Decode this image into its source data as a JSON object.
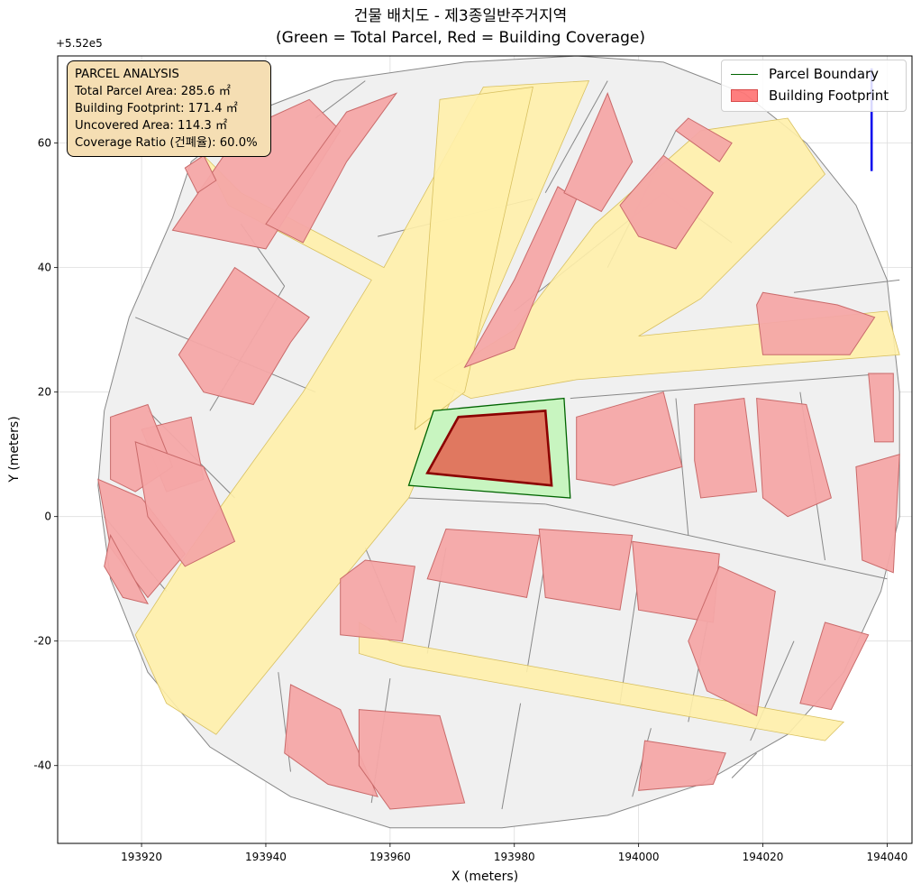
{
  "title": {
    "line1": "건물 배치도 - 제3종일반주거지역",
    "line2": "(Green = Total Parcel, Red = Building Coverage)"
  },
  "info_box": {
    "heading": "PARCEL ANALYSIS",
    "total_area": "Total Parcel Area: 285.6 ㎡",
    "footprint": "Building Footprint: 171.4 ㎡",
    "uncovered": "Uncovered Area: 114.3 ㎡",
    "coverage": "Coverage Ratio (건폐율): 60.0%"
  },
  "legend": {
    "placement": "top-right",
    "items": [
      {
        "label": "Parcel Boundary",
        "color": "#006400",
        "kind": "line"
      },
      {
        "label": "Building Footprint",
        "color": "#ff0000",
        "kind": "patch"
      }
    ]
  },
  "chart_data": {
    "type": "map",
    "xlabel": "X (meters)",
    "ylabel": "Y (meters)",
    "y_offset_label": "+5.52e5",
    "xlim": [
      193906.5,
      194044
    ],
    "ylim": [
      -52.5,
      74
    ],
    "x_ticks": [
      193920,
      193940,
      193960,
      193980,
      194000,
      194020,
      194040
    ],
    "y_ticks": [
      -40,
      -20,
      0,
      20,
      40,
      60
    ],
    "x_tick_labels": [
      "193920",
      "193940",
      "193960",
      "193980",
      "194000",
      "194020",
      "194040"
    ],
    "y_tick_labels": [
      "-40",
      "-20",
      "0",
      "20",
      "40",
      "60"
    ],
    "grid": true,
    "colors": {
      "block": "#f0f0f0",
      "block_edge": "#888888",
      "road": "#fff0aa",
      "building": "#f4a6a6",
      "parcel_fill": "#c8f5c0",
      "parcel_edge": "#006400",
      "target_building": "#e07860",
      "target_edge": "#8b0000",
      "marker": "#0000ee"
    },
    "study_area": [
      [
        193928,
        57
      ],
      [
        193938,
        65
      ],
      [
        193951,
        70
      ],
      [
        193972,
        73
      ],
      [
        193990,
        74
      ],
      [
        194004,
        73
      ],
      [
        194017,
        68
      ],
      [
        194027,
        60
      ],
      [
        194035,
        50
      ],
      [
        194040,
        38
      ],
      [
        194042,
        20
      ],
      [
        194042,
        0
      ],
      [
        194039,
        -12
      ],
      [
        194033,
        -25
      ],
      [
        194024,
        -35
      ],
      [
        194010,
        -43
      ],
      [
        193995,
        -48
      ],
      [
        193978,
        -50
      ],
      [
        193960,
        -50
      ],
      [
        193944,
        -45
      ],
      [
        193931,
        -37
      ],
      [
        193921,
        -25
      ],
      [
        193915,
        -10
      ],
      [
        193913,
        5
      ],
      [
        193914,
        17
      ],
      [
        193918,
        32
      ],
      [
        193925,
        48
      ]
    ],
    "block_lines": [
      [
        [
          193936,
          47
        ],
        [
          193943,
          37
        ]
      ],
      [
        [
          193921,
          17
        ],
        [
          193935,
          3
        ]
      ],
      [
        [
          193914,
          0
        ],
        [
          193924,
          -12
        ]
      ],
      [
        [
          193919,
          32
        ],
        [
          193948,
          20
        ]
      ],
      [
        [
          193943,
          37
        ],
        [
          193931,
          17
        ]
      ],
      [
        [
          193948,
          64
        ],
        [
          193956,
          70
        ]
      ],
      [
        [
          193958,
          45
        ],
        [
          193983,
          51
        ]
      ],
      [
        [
          193985,
          52
        ],
        [
          193995,
          70
        ]
      ],
      [
        [
          194004,
          52
        ],
        [
          194015,
          44
        ]
      ],
      [
        [
          193995,
          40
        ],
        [
          194006,
          62
        ]
      ],
      [
        [
          193980,
          33
        ],
        [
          194004,
          52
        ]
      ],
      [
        [
          194025,
          36
        ],
        [
          194042,
          38
        ]
      ],
      [
        [
          193989,
          19
        ],
        [
          194040,
          23
        ]
      ],
      [
        [
          194026,
          20
        ],
        [
          194030,
          -7
        ]
      ],
      [
        [
          194006,
          19
        ],
        [
          194008,
          -3
        ]
      ],
      [
        [
          193985,
          2
        ],
        [
          194040,
          -10
        ]
      ],
      [
        [
          193963,
          3
        ],
        [
          193985,
          2
        ]
      ],
      [
        [
          193956,
          -5
        ],
        [
          193961,
          -17
        ]
      ],
      [
        [
          193969,
          -5
        ],
        [
          193966,
          -22
        ]
      ],
      [
        [
          193985,
          -7
        ],
        [
          193982,
          -25
        ]
      ],
      [
        [
          194000,
          -10
        ],
        [
          193997,
          -30
        ]
      ],
      [
        [
          194012,
          -12
        ],
        [
          194008,
          -33
        ]
      ],
      [
        [
          194025,
          -20
        ],
        [
          194018,
          -36
        ]
      ],
      [
        [
          193942,
          -25
        ],
        [
          193944,
          -41
        ]
      ],
      [
        [
          193960,
          -26
        ],
        [
          193957,
          -46
        ]
      ],
      [
        [
          193981,
          -30
        ],
        [
          193978,
          -47
        ]
      ],
      [
        [
          194002,
          -34
        ],
        [
          193999,
          -45
        ]
      ],
      [
        [
          194019,
          -38
        ],
        [
          194015,
          -42
        ]
      ]
    ],
    "roads": [
      [
        [
          193930,
          58
        ],
        [
          193936,
          52
        ],
        [
          193959,
          40
        ],
        [
          193975,
          69
        ],
        [
          193992,
          70
        ],
        [
          193963,
          3
        ],
        [
          193932,
          -35
        ],
        [
          193924,
          -30
        ],
        [
          193919,
          -19
        ],
        [
          193928,
          -5
        ],
        [
          193946,
          20
        ],
        [
          193957,
          38
        ],
        [
          193934,
          50
        ]
      ],
      [
        [
          193967,
          22
        ],
        [
          193980,
          30
        ],
        [
          193993,
          47
        ],
        [
          194010,
          62
        ],
        [
          194024,
          64
        ],
        [
          194030,
          55
        ],
        [
          194010,
          35
        ],
        [
          194000,
          29
        ],
        [
          194040,
          33
        ],
        [
          194042,
          26
        ],
        [
          193990,
          22
        ],
        [
          193973,
          19
        ]
      ],
      [
        [
          193955,
          -17
        ],
        [
          193960,
          -20
        ],
        [
          194033,
          -33
        ],
        [
          194030,
          -36
        ],
        [
          193962,
          -24
        ],
        [
          193955,
          -22
        ]
      ],
      [
        [
          193968,
          67
        ],
        [
          193983,
          69
        ],
        [
          193972,
          20
        ],
        [
          193964,
          14
        ]
      ]
    ],
    "buildings": [
      [
        [
          193925,
          46
        ],
        [
          193940,
          43
        ],
        [
          193952,
          62
        ],
        [
          193947,
          67
        ],
        [
          193936,
          62
        ]
      ],
      [
        [
          193926,
          26
        ],
        [
          193935,
          40
        ],
        [
          193947,
          32
        ],
        [
          193944,
          28
        ],
        [
          193938,
          18
        ],
        [
          193930,
          20
        ]
      ],
      [
        [
          193920,
          14
        ],
        [
          193928,
          16
        ],
        [
          193930,
          6
        ],
        [
          193924,
          4
        ]
      ],
      [
        [
          193915,
          16
        ],
        [
          193921,
          18
        ],
        [
          193925,
          8
        ],
        [
          193919,
          4
        ],
        [
          193915,
          6
        ]
      ],
      [
        [
          193913,
          6
        ],
        [
          193920,
          3
        ],
        [
          193927,
          -6
        ],
        [
          193921,
          -13
        ],
        [
          193915,
          -5
        ]
      ],
      [
        [
          193915,
          -3
        ],
        [
          193921,
          -14
        ],
        [
          193917,
          -13
        ],
        [
          193914,
          -8
        ]
      ],
      [
        [
          193919,
          12
        ],
        [
          193930,
          8
        ],
        [
          193935,
          -4
        ],
        [
          193927,
          -8
        ],
        [
          193921,
          0
        ]
      ],
      [
        [
          193953,
          65
        ],
        [
          193961,
          68
        ],
        [
          193953,
          57
        ],
        [
          193946,
          44
        ],
        [
          193940,
          47
        ]
      ],
      [
        [
          193972,
          24
        ],
        [
          193980,
          27
        ],
        [
          193990,
          51
        ],
        [
          193987,
          53
        ],
        [
          193980,
          38
        ]
      ],
      [
        [
          193988,
          52
        ],
        [
          193995,
          68
        ],
        [
          193999,
          57
        ],
        [
          193994,
          49
        ]
      ],
      [
        [
          193997,
          50
        ],
        [
          194004,
          58
        ],
        [
          194012,
          52
        ],
        [
          194006,
          43
        ],
        [
          194000,
          45
        ]
      ],
      [
        [
          194008,
          64
        ],
        [
          194015,
          60
        ],
        [
          194013,
          57
        ],
        [
          194006,
          62
        ]
      ],
      [
        [
          194020,
          36
        ],
        [
          194032,
          34
        ],
        [
          194038,
          32
        ],
        [
          194034,
          26
        ],
        [
          194020,
          26
        ],
        [
          194019,
          34
        ]
      ],
      [
        [
          194037,
          23
        ],
        [
          194041,
          23
        ],
        [
          194041,
          12
        ],
        [
          194038,
          12
        ]
      ],
      [
        [
          193990,
          16
        ],
        [
          194004,
          20
        ],
        [
          194007,
          8
        ],
        [
          193996,
          5
        ],
        [
          193990,
          6
        ]
      ],
      [
        [
          194009,
          18
        ],
        [
          194017,
          19
        ],
        [
          194019,
          4
        ],
        [
          194010,
          3
        ],
        [
          194009,
          9
        ]
      ],
      [
        [
          194019,
          19
        ],
        [
          194027,
          18
        ],
        [
          194031,
          3
        ],
        [
          194024,
          0
        ],
        [
          194020,
          3
        ]
      ],
      [
        [
          194035,
          8
        ],
        [
          194042,
          10
        ],
        [
          194041,
          -9
        ],
        [
          194036,
          -7
        ]
      ],
      [
        [
          193969,
          -2
        ],
        [
          193984,
          -3
        ],
        [
          193982,
          -13
        ],
        [
          193966,
          -10
        ]
      ],
      [
        [
          193984,
          -2
        ],
        [
          193999,
          -3
        ],
        [
          193997,
          -15
        ],
        [
          193985,
          -13
        ]
      ],
      [
        [
          193999,
          -4
        ],
        [
          194013,
          -6
        ],
        [
          194012,
          -17
        ],
        [
          194000,
          -15
        ]
      ],
      [
        [
          194013,
          -8
        ],
        [
          194022,
          -12
        ],
        [
          194019,
          -32
        ],
        [
          194011,
          -28
        ],
        [
          194008,
          -20
        ]
      ],
      [
        [
          193956,
          -7
        ],
        [
          193964,
          -8
        ],
        [
          193962,
          -20
        ],
        [
          193952,
          -19
        ],
        [
          193952,
          -10
        ]
      ],
      [
        [
          194030,
          -17
        ],
        [
          194037,
          -19
        ],
        [
          194031,
          -31
        ],
        [
          194026,
          -30
        ]
      ],
      [
        [
          193944,
          -27
        ],
        [
          193952,
          -31
        ],
        [
          193958,
          -45
        ],
        [
          193950,
          -43
        ],
        [
          193943,
          -38
        ]
      ],
      [
        [
          193955,
          -31
        ],
        [
          193968,
          -32
        ],
        [
          193972,
          -46
        ],
        [
          193960,
          -47
        ],
        [
          193955,
          -40
        ]
      ],
      [
        [
          194001,
          -36
        ],
        [
          194014,
          -38
        ],
        [
          194012,
          -43
        ],
        [
          194000,
          -44
        ]
      ],
      [
        [
          193927,
          56
        ],
        [
          193930,
          58
        ],
        [
          193932,
          54
        ],
        [
          193929,
          52
        ]
      ]
    ],
    "parcel": [
      [
        193963,
        5
      ],
      [
        193967,
        17
      ],
      [
        193988,
        19
      ],
      [
        193989,
        3
      ]
    ],
    "target_building": [
      [
        193966,
        7
      ],
      [
        193971,
        16
      ],
      [
        193985,
        17
      ],
      [
        193986,
        5
      ]
    ],
    "marker_x": 194037.5,
    "marker_y": [
      55.5,
      72
    ]
  }
}
